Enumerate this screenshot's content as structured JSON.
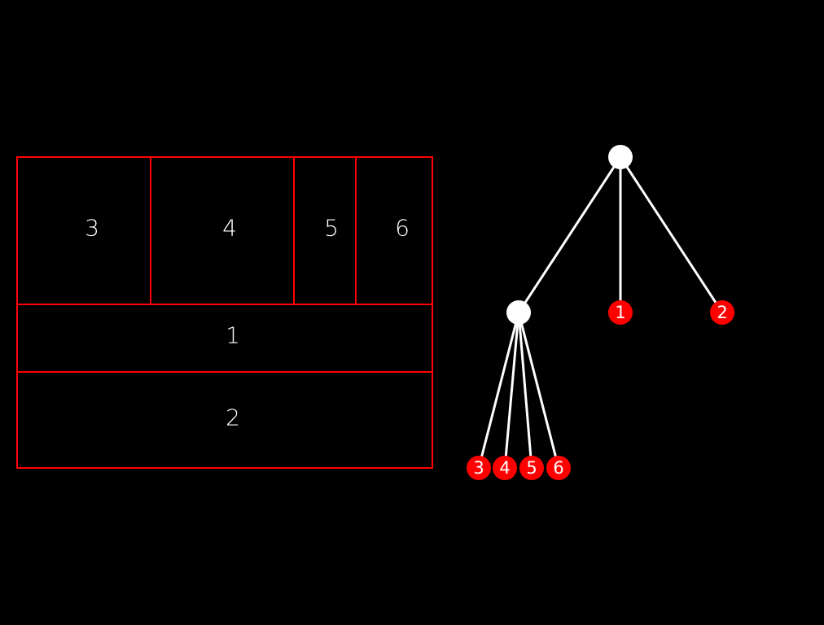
{
  "colors": {
    "background": "#000000",
    "region_border": "#ff0000",
    "edge": "#ffffff",
    "internal_node": "#ffffff",
    "leaf_node": "#ff0000",
    "text": "#ffffff"
  },
  "layout_regions": [
    {
      "id": "region-3",
      "label": "3"
    },
    {
      "id": "region-4",
      "label": "4"
    },
    {
      "id": "region-5",
      "label": "5"
    },
    {
      "id": "region-6",
      "label": "6"
    },
    {
      "id": "region-1",
      "label": "1"
    },
    {
      "id": "region-2",
      "label": "2"
    }
  ],
  "tree": {
    "root": {
      "children": [
        {
          "children": [
            {
              "label": "3"
            },
            {
              "label": "4"
            },
            {
              "label": "5"
            },
            {
              "label": "6"
            }
          ]
        },
        {
          "label": "1"
        },
        {
          "label": "2"
        }
      ]
    }
  }
}
